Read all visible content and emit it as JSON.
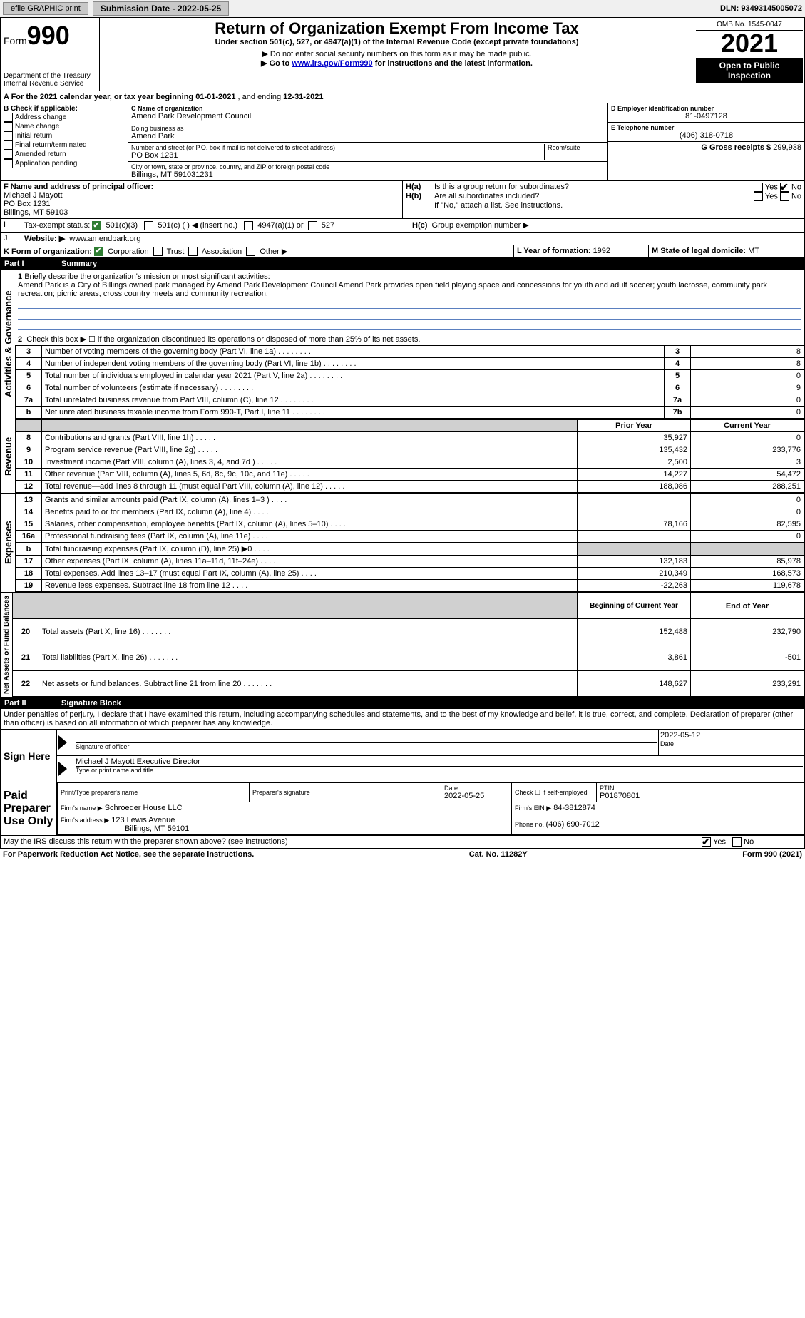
{
  "colors": {
    "black": "#000000",
    "white": "#ffffff",
    "header_grey": "#c8c8c8",
    "line_blue": "#5a7fbf",
    "link_blue": "#0000cc",
    "check_green": "#2e7d32"
  },
  "top_bar": {
    "efile": "efile GRAPHIC print",
    "submission_btn": "Submission Date - 2022-05-25",
    "dln": "DLN: 93493145005072"
  },
  "header": {
    "form_label": "Form",
    "form_number": "990",
    "dept1": "Department of the Treasury",
    "dept2": "Internal Revenue Service",
    "title": "Return of Organization Exempt From Income Tax",
    "subtitle": "Under section 501(c), 527, or 4947(a)(1) of the Internal Revenue Code (except private foundations)",
    "note1": "▶ Do not enter social security numbers on this form as it may be made public.",
    "note2_pre": "▶ Go to ",
    "note2_link": "www.irs.gov/Form990",
    "note2_post": " for instructions and the latest information.",
    "omb": "OMB No. 1545-0047",
    "year": "2021",
    "inspect": "Open to Public Inspection"
  },
  "period": {
    "label_a": "A For the 2021 calendar year, or tax year beginning ",
    "begin": "01-01-2021",
    "mid": " , and ending ",
    "end": "12-31-2021"
  },
  "box_b": {
    "header": "B Check if applicable:",
    "items": [
      "Address change",
      "Name change",
      "Initial return",
      "Final return/terminated",
      "Amended return",
      "Application pending"
    ]
  },
  "box_c": {
    "label_c": "C Name of organization",
    "name": "Amend Park Development Council",
    "dba_label": "Doing business as",
    "dba": "Amend Park",
    "addr_label": "Number and street (or P.O. box if mail is not delivered to street address)",
    "room_label": "Room/suite",
    "addr": "PO Box 1231",
    "city_label": "City or town, state or province, country, and ZIP or foreign postal code",
    "city": "Billings, MT  591031231"
  },
  "box_d": {
    "label": "D Employer identification number",
    "ein": "81-0497128",
    "label_e": "E Telephone number",
    "phone": "(406) 318-0718",
    "label_g": "G Gross receipts $ ",
    "gross": "299,938"
  },
  "box_f": {
    "label": "F Name and address of principal officer:",
    "name": "Michael J Mayott",
    "addr1": "PO Box 1231",
    "addr2": "Billings, MT  59103"
  },
  "box_h": {
    "ha_label": "H(a)",
    "ha_text": "Is this a group return for subordinates?",
    "hb_label": "H(b)",
    "hb_text": "Are all subordinates included?",
    "hb_note": "If \"No,\" attach a list. See instructions.",
    "hc_label": "H(c)",
    "hc_text": "Group exemption number ▶",
    "yes": "Yes",
    "no": "No"
  },
  "box_i": {
    "label": "I",
    "text": "Tax-exempt status:",
    "opt1": "501(c)(3)",
    "opt2": "501(c) (   ) ◀ (insert no.)",
    "opt3": "4947(a)(1) or",
    "opt4": "527"
  },
  "box_j": {
    "label": "J",
    "text": "Website: ▶",
    "url": "www.amendpark.org"
  },
  "box_k": {
    "label": "K Form of organization:",
    "opts": [
      "Corporation",
      "Trust",
      "Association",
      "Other ▶"
    ],
    "l_label": "L Year of formation: ",
    "l_val": "1992",
    "m_label": "M State of legal domicile: ",
    "m_val": "MT"
  },
  "part1": {
    "part": "Part I",
    "title": "Summary",
    "side_labels": [
      "Activities & Governance",
      "Revenue",
      "Expenses",
      "Net Assets or Fund Balances"
    ],
    "line1_label": "1",
    "line1_text": "Briefly describe the organization's mission or most significant activities:",
    "mission": "Amend Park is a City of Billings owned park managed by Amend Park Development Council Amend Park provides open field playing space and concessions for youth and adult soccer; youth lacrosse, community park recreation; picnic areas, cross country meets and community recreation.",
    "line2": "Check this box ▶ ☐ if the organization discontinued its operations or disposed of more than 25% of its net assets.",
    "gov_rows": [
      {
        "n": "3",
        "t": "Number of voting members of the governing body (Part VI, line 1a)",
        "k": "3",
        "v": "8"
      },
      {
        "n": "4",
        "t": "Number of independent voting members of the governing body (Part VI, line 1b)",
        "k": "4",
        "v": "8"
      },
      {
        "n": "5",
        "t": "Total number of individuals employed in calendar year 2021 (Part V, line 2a)",
        "k": "5",
        "v": "0"
      },
      {
        "n": "6",
        "t": "Total number of volunteers (estimate if necessary)",
        "k": "6",
        "v": "9"
      },
      {
        "n": "7a",
        "t": "Total unrelated business revenue from Part VIII, column (C), line 12",
        "k": "7a",
        "v": "0"
      },
      {
        "n": "b",
        "t": "Net unrelated business taxable income from Form 990-T, Part I, line 11",
        "k": "7b",
        "v": "0"
      }
    ],
    "col_headers": {
      "prior": "Prior Year",
      "current": "Current Year"
    },
    "rev_rows": [
      {
        "n": "8",
        "t": "Contributions and grants (Part VIII, line 1h)",
        "p": "35,927",
        "c": "0"
      },
      {
        "n": "9",
        "t": "Program service revenue (Part VIII, line 2g)",
        "p": "135,432",
        "c": "233,776"
      },
      {
        "n": "10",
        "t": "Investment income (Part VIII, column (A), lines 3, 4, and 7d )",
        "p": "2,500",
        "c": "3"
      },
      {
        "n": "11",
        "t": "Other revenue (Part VIII, column (A), lines 5, 6d, 8c, 9c, 10c, and 11e)",
        "p": "14,227",
        "c": "54,472"
      },
      {
        "n": "12",
        "t": "Total revenue—add lines 8 through 11 (must equal Part VIII, column (A), line 12)",
        "p": "188,086",
        "c": "288,251"
      }
    ],
    "exp_rows": [
      {
        "n": "13",
        "t": "Grants and similar amounts paid (Part IX, column (A), lines 1–3 )",
        "p": "",
        "c": "0"
      },
      {
        "n": "14",
        "t": "Benefits paid to or for members (Part IX, column (A), line 4)",
        "p": "",
        "c": "0"
      },
      {
        "n": "15",
        "t": "Salaries, other compensation, employee benefits (Part IX, column (A), lines 5–10)",
        "p": "78,166",
        "c": "82,595"
      },
      {
        "n": "16a",
        "t": "Professional fundraising fees (Part IX, column (A), line 11e)",
        "p": "",
        "c": "0"
      },
      {
        "n": "b",
        "t": "Total fundraising expenses (Part IX, column (D), line 25) ▶0",
        "p": "__GREY__",
        "c": "__GREY__"
      },
      {
        "n": "17",
        "t": "Other expenses (Part IX, column (A), lines 11a–11d, 11f–24e)",
        "p": "132,183",
        "c": "85,978"
      },
      {
        "n": "18",
        "t": "Total expenses. Add lines 13–17 (must equal Part IX, column (A), line 25)",
        "p": "210,349",
        "c": "168,573"
      },
      {
        "n": "19",
        "t": "Revenue less expenses. Subtract line 18 from line 12",
        "p": "-22,263",
        "c": "119,678"
      }
    ],
    "net_headers": {
      "begin": "Beginning of Current Year",
      "end": "End of Year"
    },
    "net_rows": [
      {
        "n": "20",
        "t": "Total assets (Part X, line 16)",
        "p": "152,488",
        "c": "232,790"
      },
      {
        "n": "21",
        "t": "Total liabilities (Part X, line 26)",
        "p": "3,861",
        "c": "-501"
      },
      {
        "n": "22",
        "t": "Net assets or fund balances. Subtract line 21 from line 20",
        "p": "148,627",
        "c": "233,291"
      }
    ]
  },
  "part2": {
    "part": "Part II",
    "title": "Signature Block",
    "perjury": "Under penalties of perjury, I declare that I have examined this return, including accompanying schedules and statements, and to the best of my knowledge and belief, it is true, correct, and complete. Declaration of preparer (other than officer) is based on all information of which preparer has any knowledge.",
    "sign_here": "Sign Here",
    "sig_officer": "Signature of officer",
    "sig_date": "2022-05-12",
    "date_label": "Date",
    "officer_name": "Michael J Mayott  Executive Director",
    "type_name": "Type or print name and title",
    "paid_prep": "Paid Preparer Use Only",
    "prep_name_label": "Print/Type preparer's name",
    "prep_sig_label": "Preparer's signature",
    "prep_date_label": "Date",
    "prep_date": "2022-05-25",
    "check_if": "Check ☐ if self-employed",
    "ptin_label": "PTIN",
    "ptin": "P01870801",
    "firm_name_label": "Firm's name   ▶",
    "firm_name": "Schroeder House LLC",
    "firm_ein_label": "Firm's EIN ▶",
    "firm_ein": "84-3812874",
    "firm_addr_label": "Firm's address ▶",
    "firm_addr1": "123 Lewis Avenue",
    "firm_addr2": "Billings, MT  59101",
    "phone_label": "Phone no. ",
    "phone": "(406) 690-7012",
    "discuss": "May the IRS discuss this return with the preparer shown above? (see instructions)",
    "yes": "Yes",
    "no": "No"
  },
  "footer": {
    "left": "For Paperwork Reduction Act Notice, see the separate instructions.",
    "mid": "Cat. No. 11282Y",
    "right": "Form 990 (2021)"
  }
}
